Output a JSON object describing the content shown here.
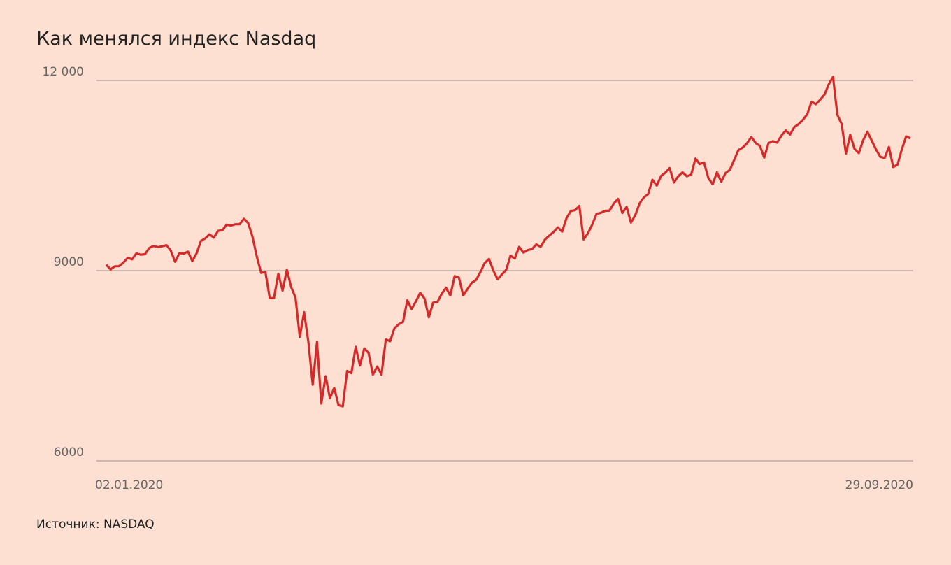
{
  "chart_data": {
    "type": "line",
    "title": "Как менялся индекс Nasdaq",
    "source": "Источник: NASDAQ",
    "categories": [
      "02.01.2020",
      null,
      null,
      null,
      null,
      null,
      null,
      null,
      null,
      null,
      null,
      null,
      null,
      null,
      null,
      null,
      null,
      null,
      null,
      null,
      null,
      null,
      null,
      null,
      null,
      null,
      null,
      null,
      null,
      null,
      null,
      null,
      null,
      null,
      null,
      null,
      null,
      null,
      null,
      null,
      null,
      null,
      null,
      null,
      null,
      null,
      null,
      null,
      null,
      null,
      null,
      null,
      null,
      null,
      null,
      null,
      null,
      null,
      null,
      null,
      null,
      null,
      null,
      null,
      null,
      null,
      null,
      null,
      null,
      null,
      null,
      null,
      null,
      null,
      null,
      null,
      null,
      null,
      null,
      null,
      null,
      null,
      null,
      null,
      null,
      null,
      null,
      null,
      null,
      null,
      null,
      null,
      null,
      null,
      null,
      null,
      null,
      null,
      null,
      null,
      null,
      null,
      null,
      null,
      null,
      null,
      null,
      null,
      null,
      null,
      null,
      null,
      null,
      null,
      null,
      null,
      null,
      null,
      null,
      null,
      null,
      null,
      null,
      null,
      null,
      null,
      null,
      null,
      null,
      null,
      null,
      null,
      null,
      null,
      null,
      null,
      null,
      null,
      null,
      null,
      null,
      null,
      null,
      null,
      null,
      null,
      null,
      null,
      null,
      null,
      null,
      null,
      null,
      null,
      null,
      null,
      null,
      null,
      null,
      null,
      null,
      null,
      null,
      null,
      null,
      null,
      null,
      null,
      null,
      null,
      null,
      null,
      null,
      null,
      null,
      null,
      null,
      null,
      null,
      null,
      null,
      null,
      null,
      null,
      null,
      null,
      null,
      "29.09.2020"
    ],
    "series": [
      {
        "name": "Nasdaq",
        "color": "#d42a2a",
        "values": [
          9092,
          9020,
          9068,
          9071,
          9129,
          9203,
          9178,
          9273,
          9251,
          9259,
          9357,
          9389,
          9370,
          9384,
          9402,
          9315,
          9139,
          9275,
          9270,
          9299,
          9150,
          9273,
          9467,
          9508,
          9572,
          9520,
          9628,
          9638,
          9725,
          9711,
          9731,
          9732,
          9817,
          9750,
          9533,
          9221,
          8965,
          8980,
          8567,
          8567,
          8952,
          8684,
          9018,
          8738,
          8575,
          7952,
          8344,
          7874,
          7201,
          7875,
          6904,
          7334,
          6989,
          7150,
          6879,
          6860,
          7418,
          7384,
          7798,
          7503,
          7774,
          7700,
          7360,
          7487,
          7360,
          7913,
          7887,
          8090,
          8153,
          8192,
          8532,
          8393,
          8515,
          8650,
          8560,
          8263,
          8495,
          8504,
          8634,
          8730,
          8608,
          8914,
          8890,
          8607,
          8710,
          8809,
          8854,
          8979,
          9121,
          9185,
          9002,
          8863,
          8940,
          9015,
          9235,
          9192,
          9375,
          9284,
          9324,
          9340,
          9413,
          9375,
          9490,
          9552,
          9608,
          9682,
          9615,
          9824,
          9939,
          9953,
          10020,
          9493,
          9588,
          9726,
          9895,
          9910,
          9943,
          9946,
          10056,
          10131,
          9909,
          10006,
          9757,
          9874,
          10058,
          10155,
          10207,
          10433,
          10341,
          10492,
          10547,
          10617,
          10390,
          10488,
          10550,
          10488,
          10512,
          10767,
          10680,
          10706,
          10461,
          10363,
          10549,
          10402,
          10540,
          10588,
          10745,
          10902,
          10941,
          11010,
          11108,
          11012,
          10968,
          10782,
          11012,
          11042,
          11019,
          11130,
          11210,
          11146,
          11265,
          11311,
          11379,
          11466,
          11665,
          11625,
          11695,
          11775,
          11940,
          12056,
          11458,
          11313,
          10847,
          11141,
          10919,
          10853,
          11056,
          11190,
          11050,
          10910,
          10794,
          10778,
          10950,
          10633,
          10672,
          10914,
          11118,
          11085
        ]
      }
    ],
    "ylim": [
      6000,
      12000
    ],
    "yticks": [
      6000,
      9000,
      {
        "value": 12000,
        "label": "12 000"
      }
    ],
    "grid": true
  }
}
